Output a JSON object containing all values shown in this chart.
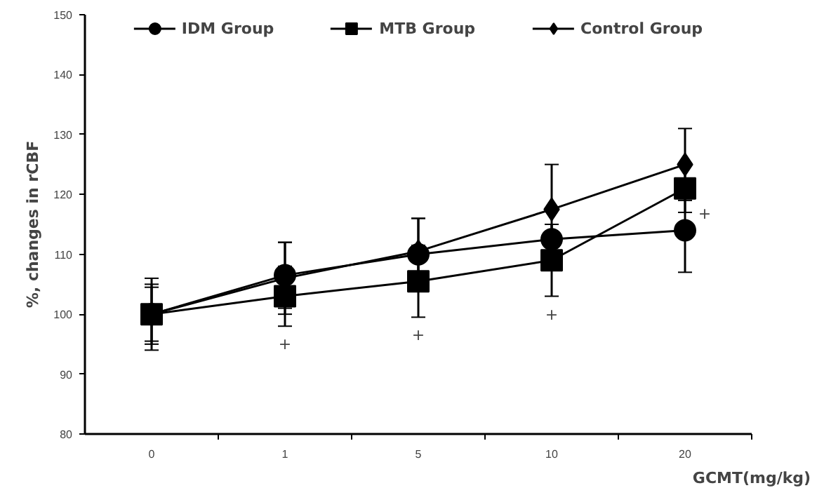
{
  "chart_data": {
    "type": "line",
    "xlabel": "GCMT(mg/kg)",
    "ylabel": "%, changes in rCBF",
    "categories": [
      "0",
      "1",
      "5",
      "10",
      "20"
    ],
    "series": [
      {
        "name": "IDM Group",
        "color": "#000000",
        "marker": "circle",
        "values": [
          100,
          106.5,
          110,
          112.5,
          114
        ],
        "errors": [
          5,
          5.5,
          6,
          2.5,
          7
        ]
      },
      {
        "name": "MTB Group",
        "color": "#000000",
        "marker": "square",
        "values": [
          100,
          103,
          105.5,
          109,
          121
        ],
        "errors": [
          4.5,
          5,
          6,
          6,
          4
        ]
      },
      {
        "name": "Control Group",
        "color": "#000000",
        "marker": "diamond",
        "values": [
          100,
          106,
          110.5,
          117.5,
          125
        ],
        "errors": [
          6,
          6,
          5.5,
          7.5,
          6
        ]
      }
    ],
    "ylim": [
      80,
      150
    ],
    "yticks": [
      80,
      90,
      100,
      110,
      120,
      130,
      140,
      150
    ],
    "grid": false,
    "legend": "top",
    "line_style": "solid",
    "annotations": [
      {
        "text": "+",
        "x": "1",
        "y": 98
      },
      {
        "text": "+",
        "x": "5",
        "y": 99.5
      },
      {
        "text": "+",
        "x": "10",
        "y": 103
      },
      {
        "text": "+",
        "x": "20",
        "y": 117
      }
    ]
  }
}
